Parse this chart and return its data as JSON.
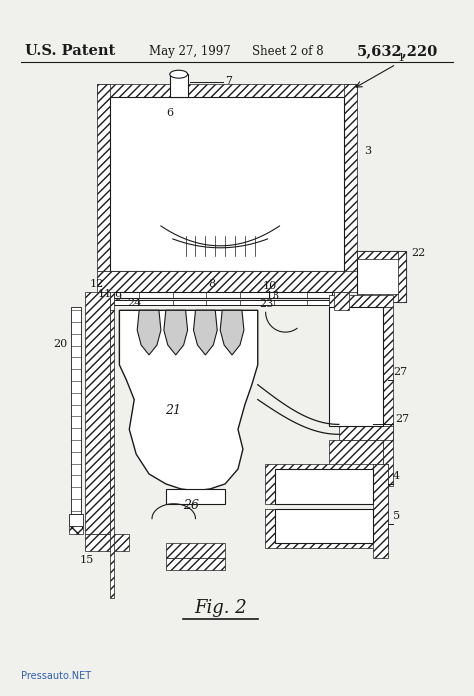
{
  "bg_color": "#f0f0ec",
  "patent_text": "U.S. Patent",
  "date_text": "May 27, 1997",
  "sheet_text": "Sheet 2 of 8",
  "patent_num": "5,632,220",
  "fig_label": "Fig. 2",
  "watermark": "Pressauto.NET",
  "line_color": "#1a1a1a",
  "white": "#ffffff",
  "light_gray": "#e8e8e8"
}
